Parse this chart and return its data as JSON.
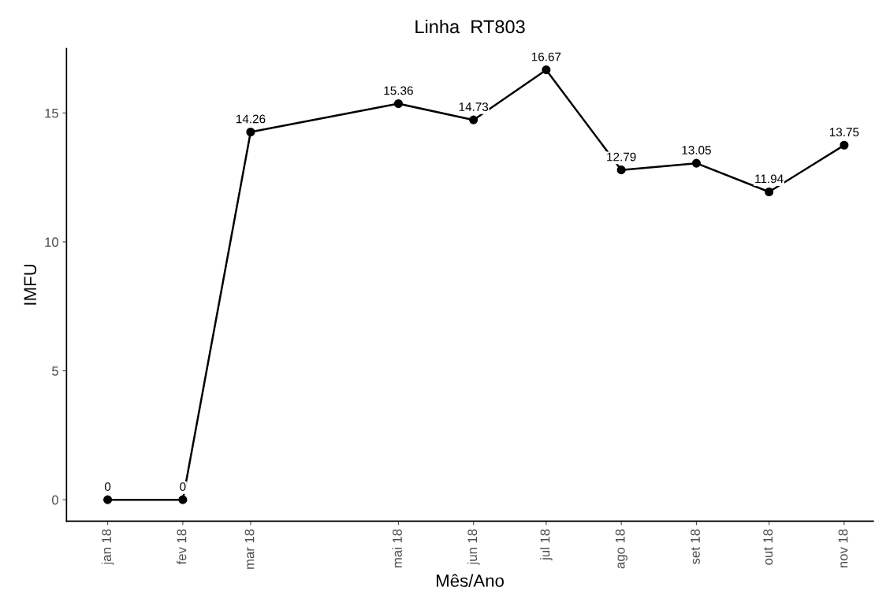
{
  "chart_data": {
    "type": "line",
    "title": "Linha  RT803",
    "xlabel": "Mês/Ano",
    "ylabel": "IMFU",
    "x": [
      "2018-01-01",
      "2018-02-01",
      "2018-03-01",
      "2018-05-01",
      "2018-06-01",
      "2018-07-01",
      "2018-08-01",
      "2018-09-01",
      "2018-10-01",
      "2018-11-01"
    ],
    "series": [
      {
        "color": "#000000",
        "values": [
          0,
          0,
          14.26,
          15.36,
          14.73,
          16.67,
          12.79,
          13.05,
          11.94,
          13.75
        ]
      }
    ],
    "data_labels": true,
    "marker": "circle",
    "line_style": "solid",
    "grid": false,
    "legend": false,
    "xlim": [
      "2017-12-15",
      "2018-11-13"
    ],
    "xticks": [
      {
        "value": "2018-01-01",
        "label": "jan 18"
      },
      {
        "value": "2018-02-01",
        "label": "fev 18"
      },
      {
        "value": "2018-03-01",
        "label": "mar 18"
      },
      {
        "value": "2018-05-01",
        "label": "mai 18"
      },
      {
        "value": "2018-06-01",
        "label": "jun 18"
      },
      {
        "value": "2018-07-01",
        "label": "jul 18"
      },
      {
        "value": "2018-08-01",
        "label": "ago 18"
      },
      {
        "value": "2018-09-01",
        "label": "set 18"
      },
      {
        "value": "2018-10-01",
        "label": "out 18"
      },
      {
        "value": "2018-11-01",
        "label": "nov 18"
      }
    ],
    "ylim": [
      -0.83,
      17.5
    ],
    "yticks": [
      0,
      5,
      10,
      15
    ]
  }
}
